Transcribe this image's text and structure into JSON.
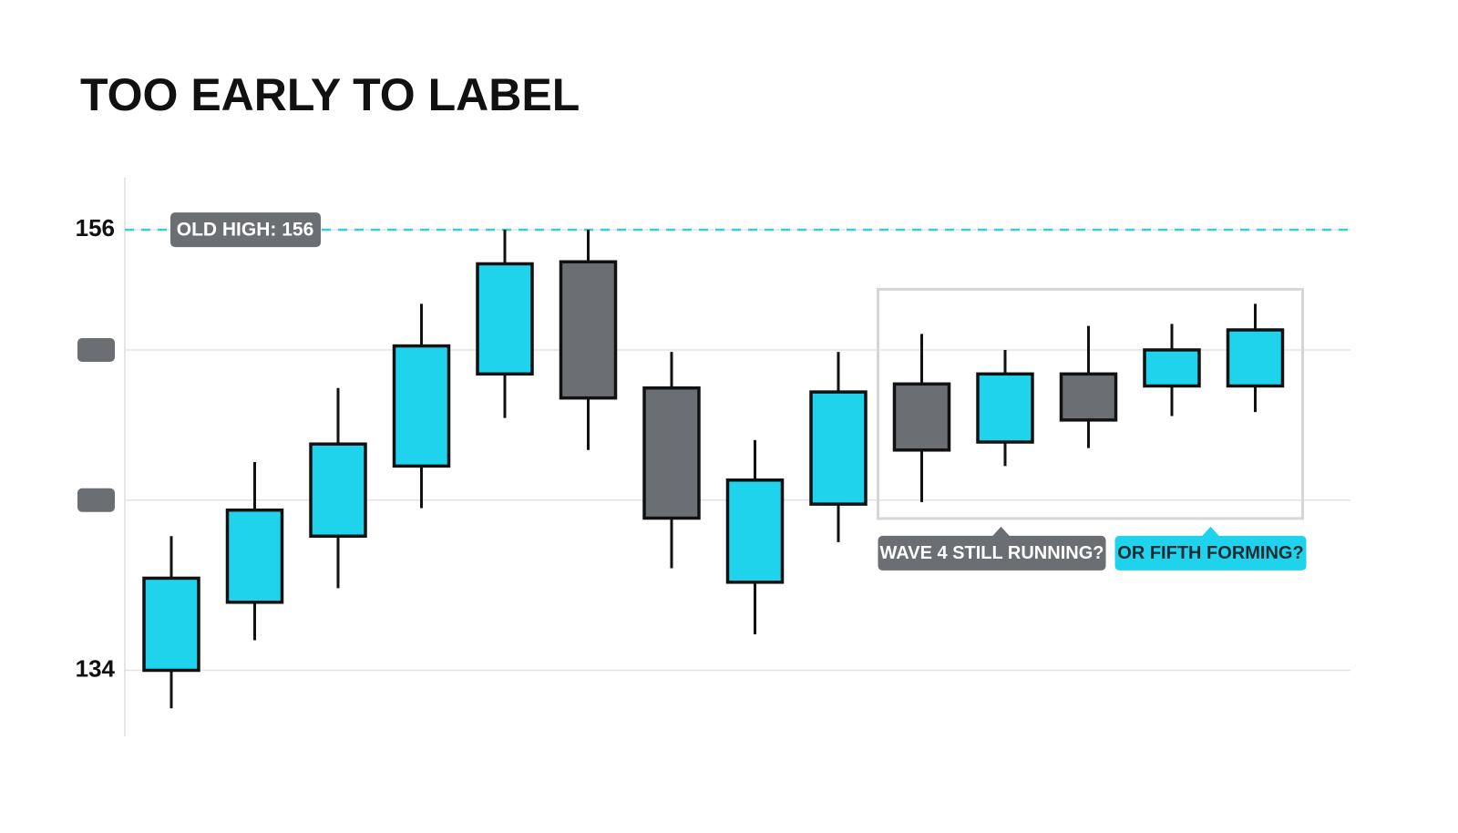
{
  "chart_data": {
    "type": "candlestick",
    "title": "TOO EARLY TO LABEL",
    "open": [
      134,
      137.4,
      140.7,
      144.2,
      148.8,
      154.4,
      148.1,
      138.4,
      142.3,
      148.3,
      145.4,
      148.8,
      148.2,
      148.2
    ],
    "high": [
      140.7,
      144.4,
      148.1,
      152.3,
      156,
      156,
      149.9,
      145.5,
      149.9,
      150.8,
      150.0,
      151.2,
      151.3,
      152.3
    ],
    "low": [
      132.1,
      135.5,
      138.1,
      142.1,
      146.6,
      145.0,
      139.1,
      135.8,
      140.4,
      142.4,
      144.2,
      145.1,
      146.7,
      146.9
    ],
    "close": [
      138.6,
      142.0,
      145.3,
      150.2,
      154.3,
      147.6,
      141.6,
      143.5,
      147.9,
      145.0,
      148.8,
      146.5,
      150.0,
      151.0
    ],
    "up_color": "#1fd3ec",
    "down_color": "#6b6e73",
    "ylim": [
      130.7,
      158.6
    ],
    "yticks": [
      134,
      {
        "value": 142.5,
        "label": null
      },
      {
        "value": 150,
        "label": null
      },
      156
    ],
    "grid": true,
    "reference_line": {
      "value": 156,
      "label": "OLD HIGH: 156",
      "color": "#36cfe0"
    },
    "highlight": {
      "from": 9,
      "to": 13,
      "callouts": [
        {
          "label": "WAVE 4 STILL RUNNING?",
          "color": "#6b6e73"
        },
        {
          "label": "OR FIFTH FORMING?",
          "color": "#1fd3ec"
        }
      ]
    }
  }
}
